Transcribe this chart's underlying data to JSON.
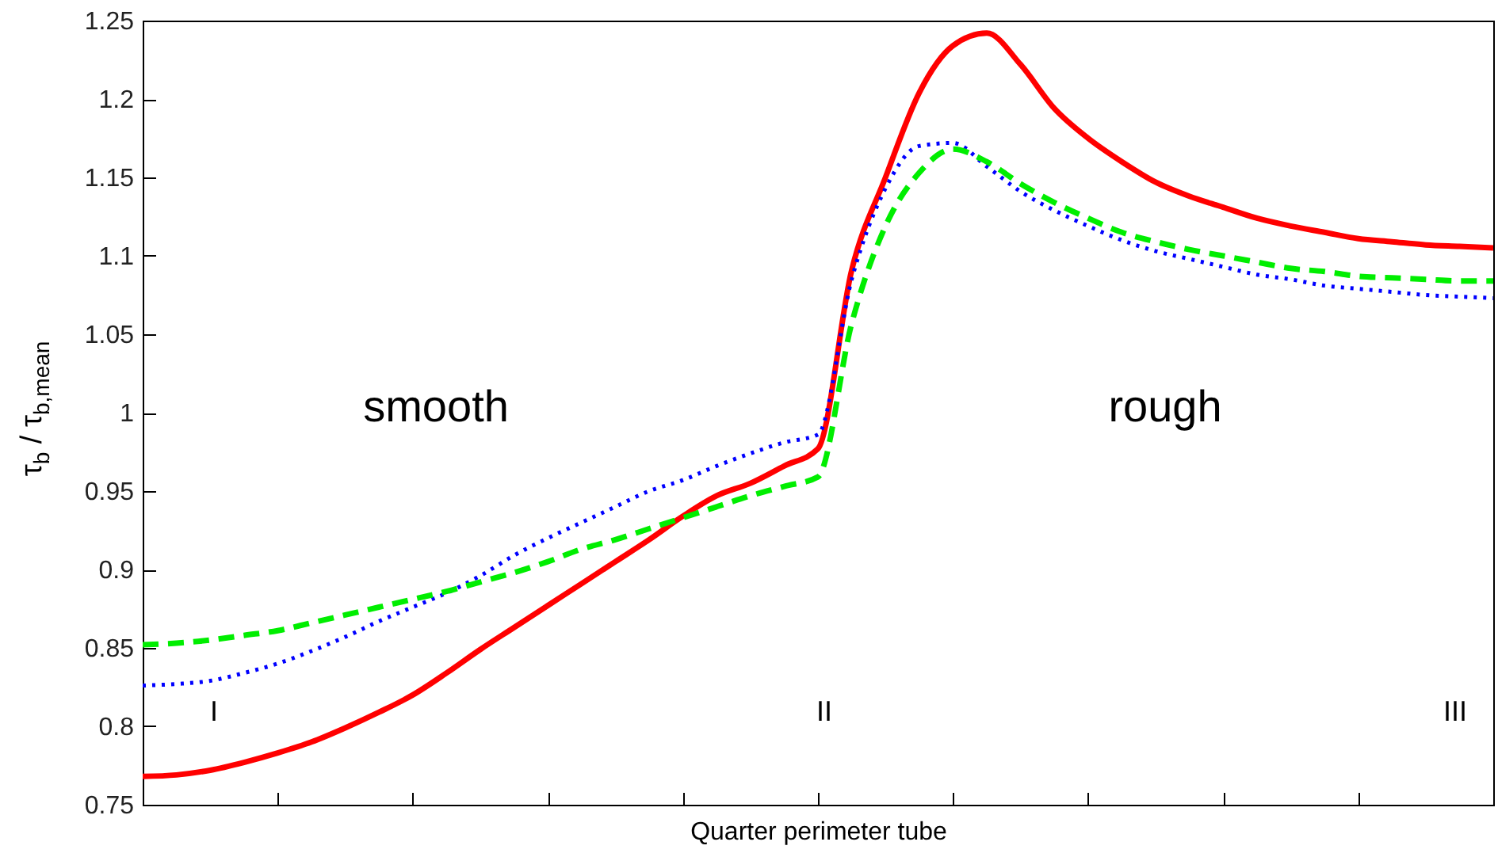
{
  "chart_data": {
    "type": "line",
    "xlabel": "Quarter perimeter tube",
    "ylabel": "τ$_{b}$ / τ$_{b,mean}$",
    "annotations": [
      "smooth",
      "rough",
      "I",
      "II",
      "III"
    ],
    "categories": [
      null,
      null,
      null,
      null,
      null,
      null,
      null,
      null,
      null,
      null,
      null,
      null,
      null,
      null,
      null,
      null,
      null,
      null,
      null,
      null,
      null,
      null,
      null,
      null,
      null,
      null,
      null,
      null,
      null,
      null,
      null,
      null,
      null,
      null,
      null,
      null,
      null,
      null,
      null,
      null,
      null
    ],
    "series": [
      {
        "color": "#ff0000",
        "line_style": "solid",
        "values": [
          0.768,
          0.769,
          0.772,
          0.777,
          0.783,
          0.79,
          0.799,
          0.809,
          0.82,
          0.834,
          0.849,
          0.863,
          0.877,
          0.891,
          0.905,
          0.919,
          0.934,
          0.947,
          0.955,
          0.966,
          0.977,
          1.091,
          1.15,
          1.204,
          1.234,
          1.242,
          1.222,
          1.194,
          1.175,
          1.16,
          1.147,
          1.138,
          1.131,
          1.124,
          1.119,
          1.115,
          1.111,
          1.109,
          1.107,
          1.106,
          1.105
        ]
      },
      {
        "color": "#0000ff",
        "line_style": "dotted",
        "values": [
          0.826,
          0.827,
          0.829,
          0.834,
          0.84,
          0.848,
          0.857,
          0.867,
          0.876,
          0.885,
          0.896,
          0.909,
          0.92,
          0.93,
          0.94,
          0.95,
          0.957,
          0.966,
          0.974,
          0.981,
          0.986,
          1.085,
          1.143,
          1.17,
          1.172,
          1.157,
          1.141,
          1.129,
          1.119,
          1.11,
          1.103,
          1.098,
          1.093,
          1.088,
          1.085,
          1.081,
          1.079,
          1.077,
          1.075,
          1.074,
          1.073
        ]
      },
      {
        "color": "#00ee00",
        "line_style": "dashed",
        "values": [
          0.852,
          0.853,
          0.855,
          0.858,
          0.861,
          0.866,
          0.871,
          0.876,
          0.881,
          0.886,
          0.892,
          0.898,
          0.905,
          0.913,
          0.919,
          0.926,
          0.933,
          0.94,
          0.947,
          0.953,
          0.959,
          1.057,
          1.119,
          1.153,
          1.168,
          1.16,
          1.146,
          1.134,
          1.124,
          1.115,
          1.109,
          1.104,
          1.1,
          1.096,
          1.092,
          1.09,
          1.087,
          1.086,
          1.085,
          1.084,
          1.084
        ]
      }
    ],
    "ylim": [
      0.75,
      1.25
    ],
    "yticks": [
      0.75,
      0.8,
      0.85,
      0.9,
      0.95,
      1,
      1.05,
      1.1,
      1.15,
      1.2,
      1.25
    ],
    "tick_labels": "y"
  }
}
